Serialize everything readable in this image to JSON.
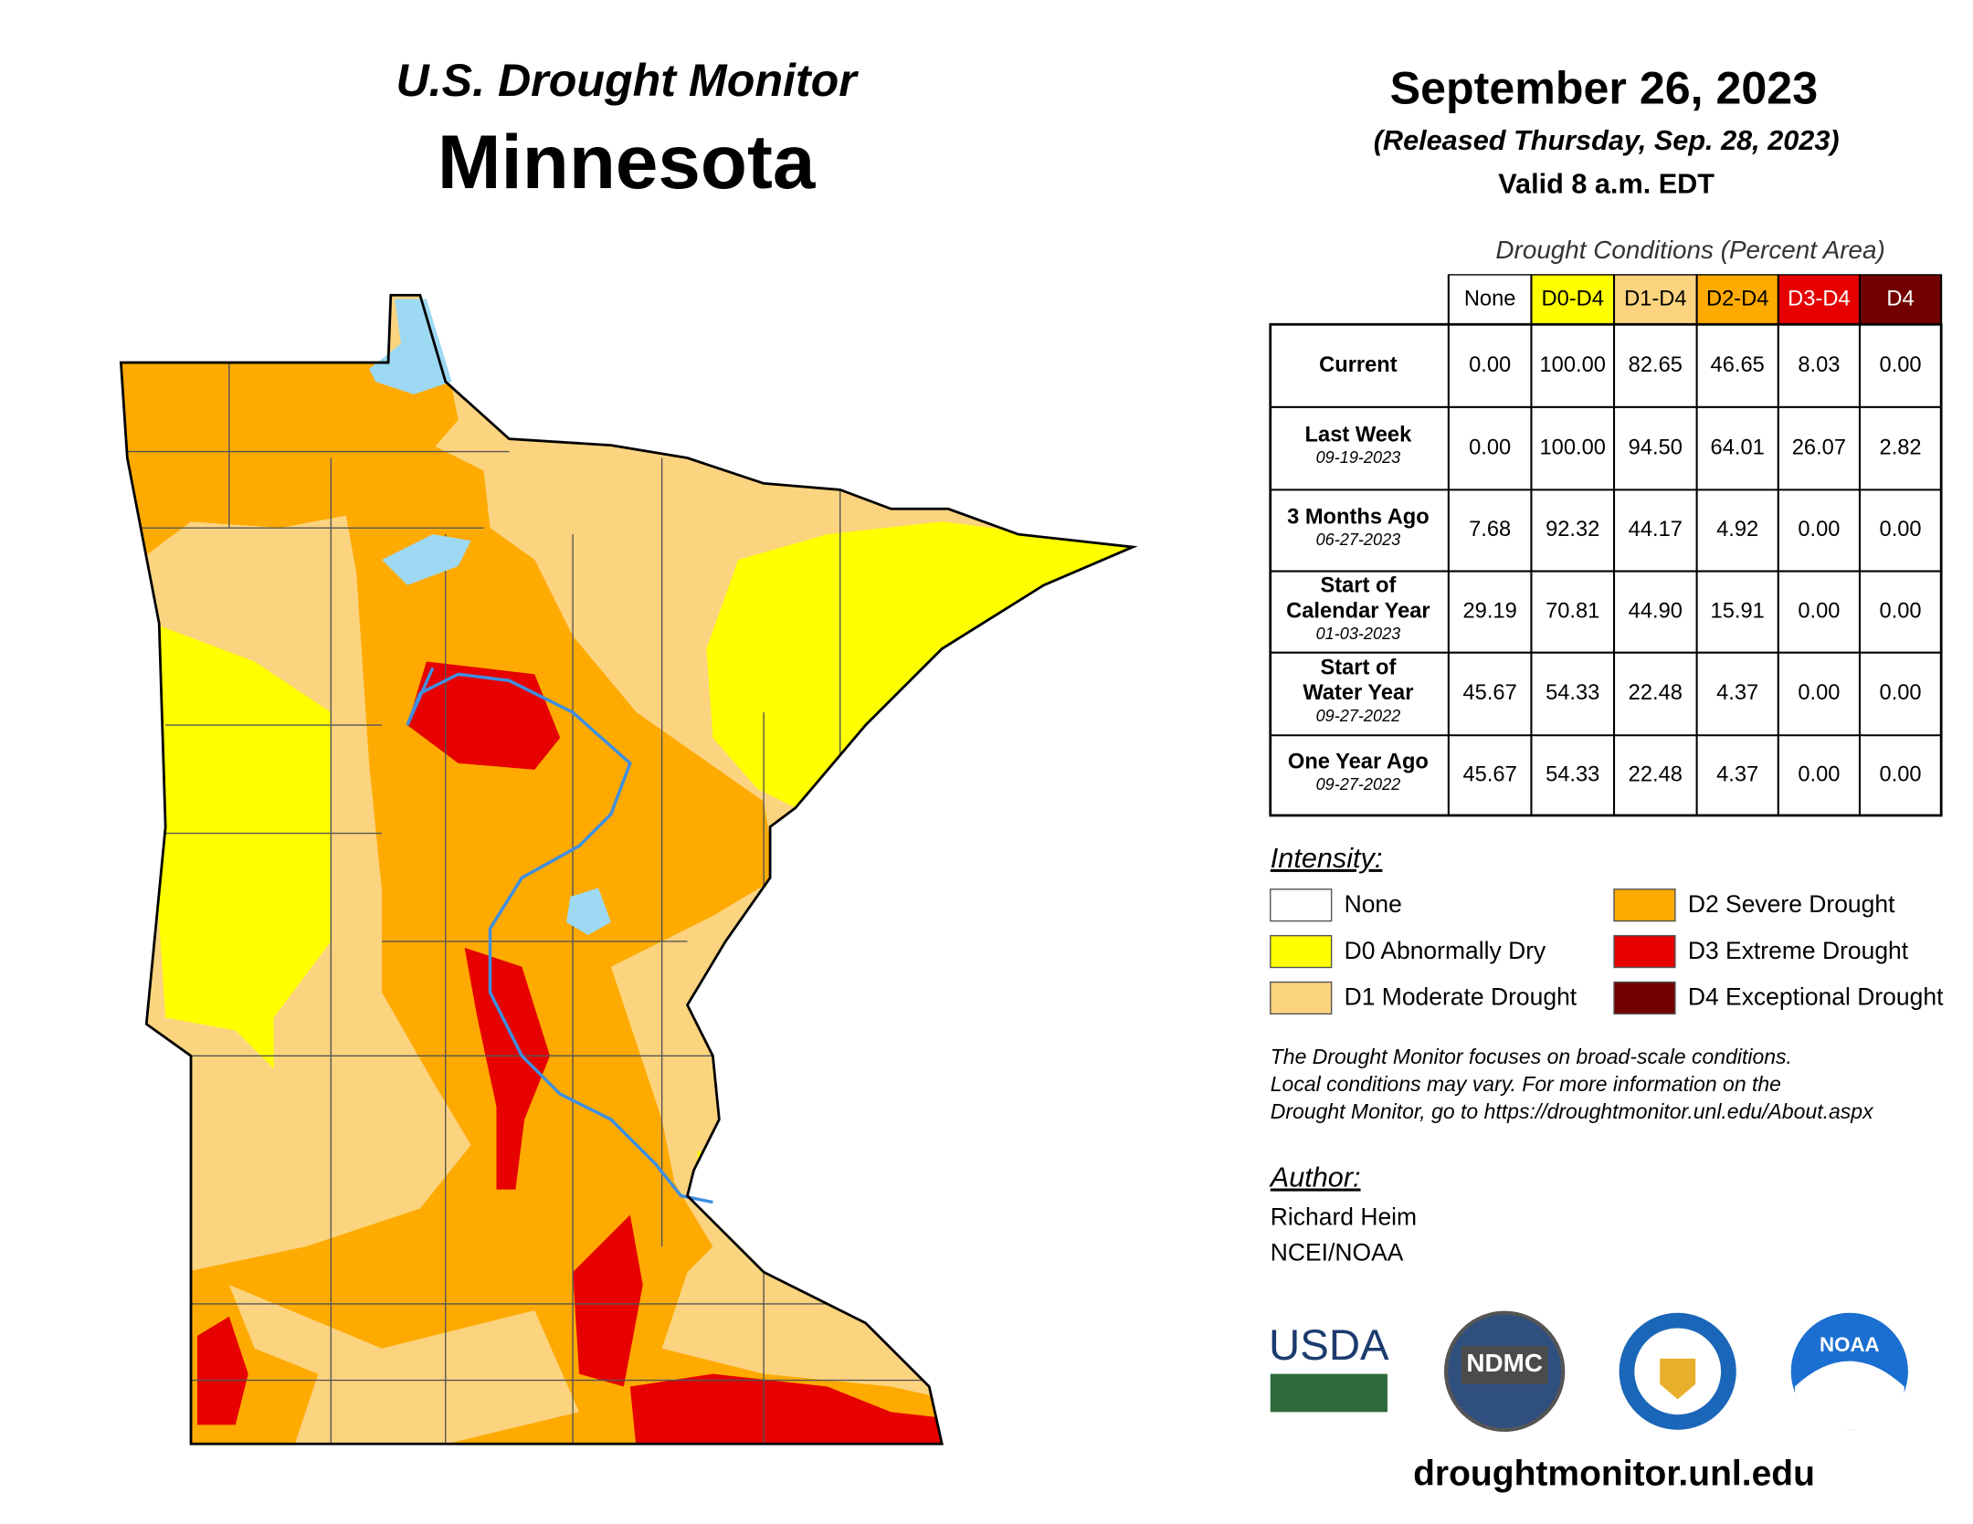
{
  "header": {
    "title": "U.S. Drought Monitor",
    "state": "Minnesota",
    "date": "September 26, 2023",
    "released": "(Released Thursday, Sep. 28, 2023)",
    "valid": "Valid 8 a.m. EDT"
  },
  "table": {
    "caption": "Drought Conditions (Percent Area)",
    "columns": [
      "None",
      "D0-D4",
      "D1-D4",
      "D2-D4",
      "D3-D4",
      "D4"
    ],
    "rows": [
      {
        "label": [
          "Current"
        ],
        "values": [
          "0.00",
          "100.00",
          "82.65",
          "46.65",
          "8.03",
          "0.00"
        ]
      },
      {
        "label": [
          "Last Week"
        ],
        "date": "09-19-2023",
        "values": [
          "0.00",
          "100.00",
          "94.50",
          "64.01",
          "26.07",
          "2.82"
        ]
      },
      {
        "label": [
          "3 Months Ago"
        ],
        "date": "06-27-2023",
        "values": [
          "7.68",
          "92.32",
          "44.17",
          "4.92",
          "0.00",
          "0.00"
        ]
      },
      {
        "label": [
          "Start of",
          "Calendar Year"
        ],
        "date": "01-03-2023",
        "values": [
          "29.19",
          "70.81",
          "44.90",
          "15.91",
          "0.00",
          "0.00"
        ]
      },
      {
        "label": [
          "Start of",
          "Water Year"
        ],
        "date": "09-27-2022",
        "values": [
          "45.67",
          "54.33",
          "22.48",
          "4.37",
          "0.00",
          "0.00"
        ]
      },
      {
        "label": [
          "One Year Ago"
        ],
        "date": "09-27-2022",
        "values": [
          "45.67",
          "54.33",
          "22.48",
          "4.37",
          "0.00",
          "0.00"
        ]
      }
    ]
  },
  "legend": {
    "title": "Intensity:",
    "items": [
      "None",
      "D0 Abnormally Dry",
      "D1 Moderate Drought",
      "D2 Severe Drought",
      "D3 Extreme Drought",
      "D4 Exceptional Drought"
    ]
  },
  "disclaimer": [
    "The Drought Monitor focuses on broad-scale conditions.",
    "Local conditions may vary. For more information on the",
    "Drought Monitor, go to https://droughtmonitor.unl.edu/About.aspx"
  ],
  "author": {
    "title": "Author:",
    "lines": [
      "Richard Heim",
      "NCEI/NOAA"
    ]
  },
  "logos": [
    "USDA",
    "NDMC",
    "NOAA"
  ],
  "url": "droughtmonitor.unl.edu"
}
